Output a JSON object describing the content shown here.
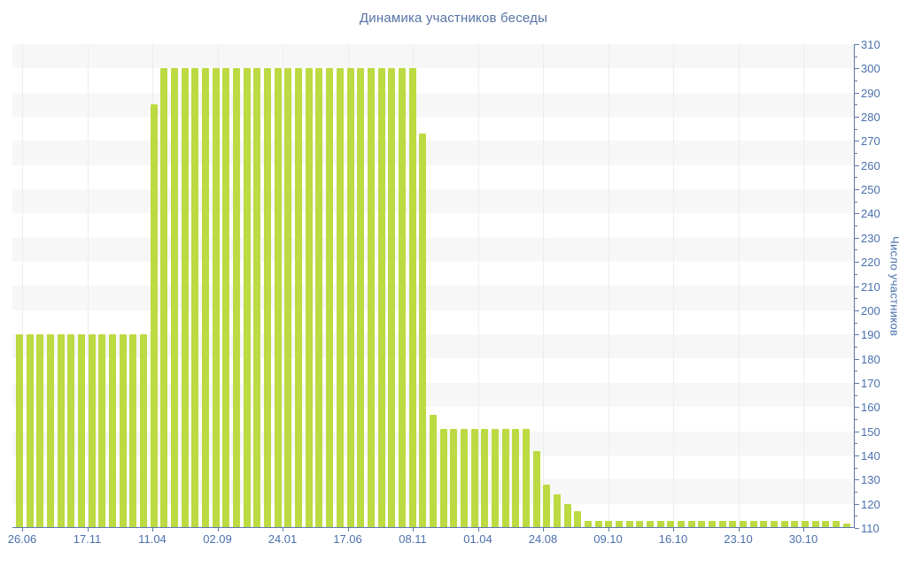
{
  "title": "Динамика участников беседы",
  "y_axis": {
    "label": "Число участников",
    "min": 110,
    "max": 310,
    "major_step": 10,
    "minor_step": 5
  },
  "x_axis": {
    "labels": [
      "26.06",
      "17.11",
      "11.04",
      "02.09",
      "24.01",
      "17.06",
      "08.11",
      "01.04",
      "24.08",
      "09.10",
      "16.10",
      "23.10",
      "30.10"
    ]
  },
  "chart_data": {
    "type": "bar",
    "title": "Динамика участников беседы",
    "xlabel": "",
    "ylabel": "Число участников",
    "ylim": [
      110,
      310
    ],
    "ytick_step": 10,
    "grid": "alternating horizontal bands, faint vertical lines at date ticks",
    "legend": null,
    "xtick_labels": [
      "26.06",
      "17.11",
      "11.04",
      "02.09",
      "24.01",
      "17.06",
      "08.11",
      "01.04",
      "24.08",
      "09.10",
      "16.10",
      "23.10",
      "30.10"
    ],
    "values": [
      190,
      190,
      190,
      190,
      190,
      190,
      190,
      190,
      190,
      190,
      190,
      190,
      190,
      285,
      300,
      300,
      300,
      300,
      300,
      300,
      300,
      300,
      300,
      300,
      300,
      300,
      300,
      300,
      300,
      300,
      300,
      300,
      300,
      300,
      300,
      300,
      300,
      300,
      300,
      273,
      157,
      151,
      151,
      151,
      151,
      151,
      151,
      151,
      151,
      151,
      142,
      128,
      124,
      120,
      117,
      113,
      113,
      113,
      113,
      113,
      113,
      113,
      113,
      113,
      113,
      113,
      113,
      113,
      113,
      113,
      113,
      113,
      113,
      113,
      113,
      113,
      113,
      113,
      113,
      113,
      112
    ]
  },
  "colors": {
    "bar": "#bcda41",
    "axis": "#5b77ad",
    "tick_label": "#4a70ad",
    "title": "#5673a5",
    "band": "#f7f7f7",
    "vgrid": "#ededed"
  }
}
